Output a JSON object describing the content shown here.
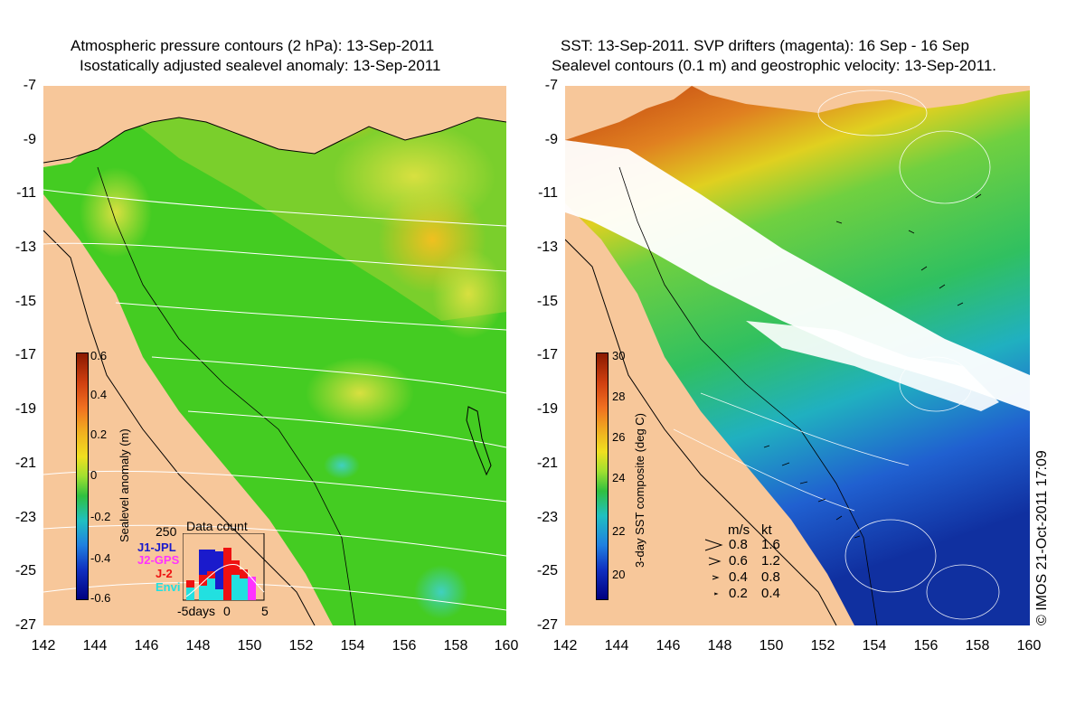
{
  "left": {
    "title_line1": "Atmospheric pressure contours (2 hPa): 13-Sep-2011",
    "title_line2": "Isostatically adjusted sealevel anomaly: 13-Sep-2011",
    "colorbar": {
      "label": "Sealevel anomaly (m)",
      "ticks": [
        "0.6",
        "0.4",
        "0.2",
        "0",
        "-0.2",
        "-0.4",
        "-0.6"
      ]
    },
    "data_count": {
      "title": "Data count",
      "ymax_label": "250",
      "satellites": [
        {
          "name": "J1-JPL",
          "color": "#1a1acc"
        },
        {
          "name": "J2-GPS",
          "color": "#ff33ff"
        },
        {
          "name": "J-2",
          "color": "#ee1111"
        },
        {
          "name": "Envi",
          "color": "#22e0e0"
        }
      ],
      "x_ticks": [
        "-5days",
        "0",
        "5"
      ]
    }
  },
  "right": {
    "title_line1": "SST: 13-Sep-2011. SVP drifters (magenta): 16 Sep - 16 Sep",
    "title_line2": "Sealevel contours (0.1 m) and geostrophic velocity: 13-Sep-2011.",
    "colorbar": {
      "label": "3-day SST composite (deg C)",
      "ticks": [
        "30",
        "28",
        "26",
        "24",
        "22",
        "20"
      ]
    },
    "velocity_legend": {
      "header_ms": "m/s",
      "header_kt": "kt",
      "rows": [
        {
          "ms": "0.8",
          "kt": "1.6"
        },
        {
          "ms": "0.6",
          "kt": "1.2"
        },
        {
          "ms": "0.4",
          "kt": "0.8"
        },
        {
          "ms": "0.2",
          "kt": "0.4"
        }
      ]
    },
    "copyright": "© IMOS 21-Oct-2011 17:09"
  },
  "axes": {
    "y_ticks": [
      "-7",
      "-9",
      "-11",
      "-13",
      "-15",
      "-17",
      "-19",
      "-21",
      "-23",
      "-25",
      "-27"
    ],
    "x_ticks": [
      "142",
      "144",
      "146",
      "148",
      "150",
      "152",
      "154",
      "156",
      "158",
      "160"
    ]
  }
}
